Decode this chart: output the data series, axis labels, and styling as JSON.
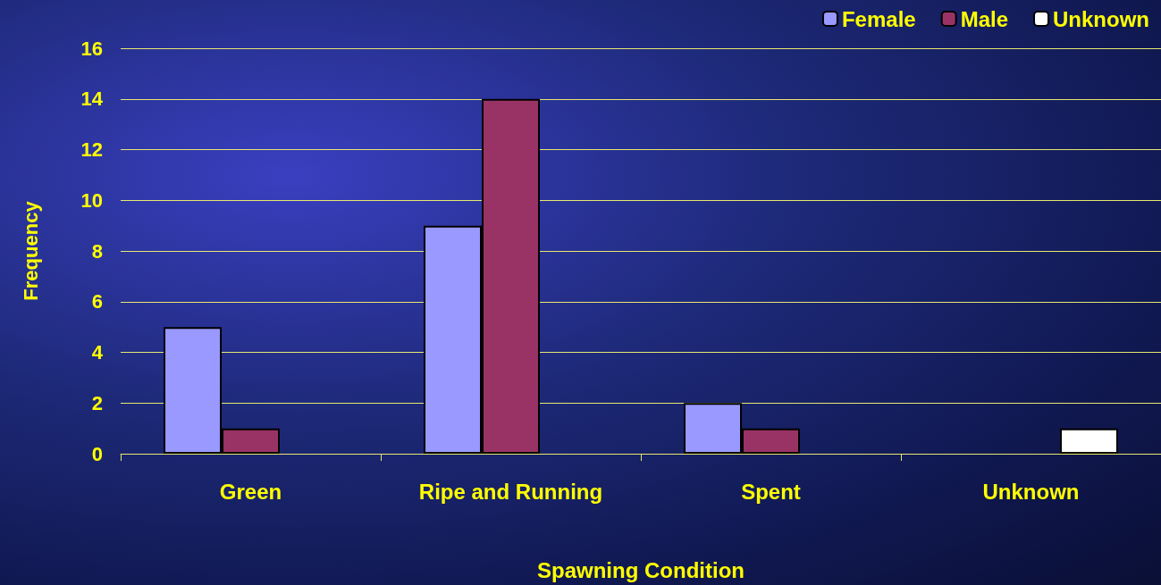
{
  "chart_data": {
    "type": "bar",
    "xlabel": "Spawning Condition",
    "ylabel": "Frequency",
    "categories": [
      "Green",
      "Ripe and Running",
      "Spent",
      "Unknown"
    ],
    "series": [
      {
        "name": "Female",
        "color": "#9999ff",
        "values": [
          5,
          9,
          2,
          null
        ]
      },
      {
        "name": "Male",
        "color": "#993366",
        "values": [
          1,
          14,
          1,
          null
        ]
      },
      {
        "name": "Unknown",
        "color": "#ffffff",
        "values": [
          null,
          null,
          null,
          1
        ]
      }
    ],
    "ylim": [
      0,
      16
    ],
    "yticks": [
      0,
      2,
      4,
      6,
      8,
      10,
      12,
      14,
      16
    ],
    "grid": "y",
    "legend": "top right"
  }
}
